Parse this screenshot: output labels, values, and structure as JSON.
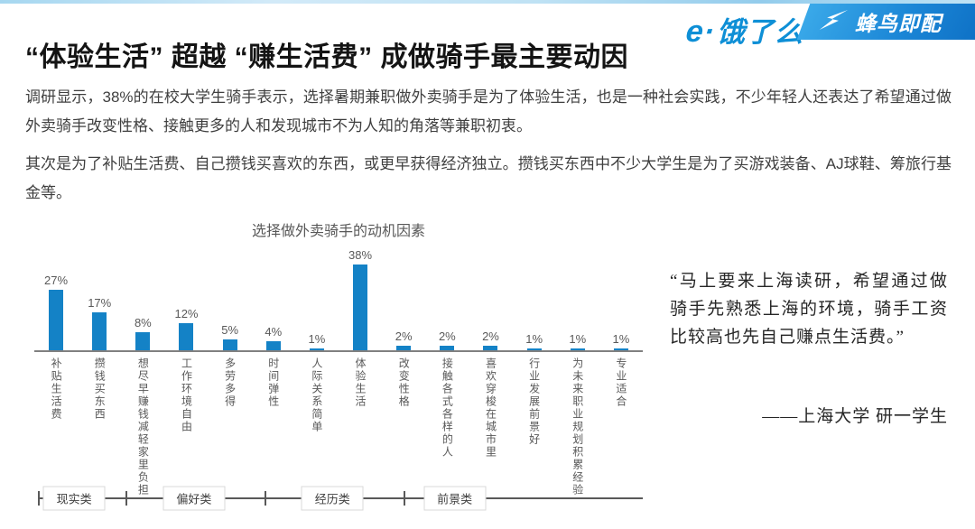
{
  "header": {
    "eleme_logo_mark": "e·",
    "eleme_logo_text": "饿了么",
    "fengniao_logo_text": "蜂鸟即配"
  },
  "title": "“体验生活” 超越 “赚生活费” 成做骑手最主要动因",
  "paragraphs": {
    "p1": "调研显示，38%的在校大学生骑手表示，选择暑期兼职做外卖骑手是为了体验生活，也是一种社会实践，不少年轻人还表达了希望通过做外卖骑手改变性格、接触更多的人和发现城市不为人知的角落等兼职初衷。",
    "p2": "其次是为了补贴生活费、自己攒钱买喜欢的东西，或更早获得经济独立。攒钱买东西中不少大学生是为了买游戏装备、AJ球鞋、筹旅行基金等。"
  },
  "chart_data": {
    "type": "bar",
    "title": "选择做外卖骑手的动机因素",
    "categories": [
      "补贴生活费",
      "攒钱买东西",
      "想尽早赚钱减轻家里负担",
      "工作环境自由",
      "多劳多得",
      "时间弹性",
      "人际关系简单",
      "体验生活",
      "改变性格",
      "接触各式各样的人",
      "喜欢穿梭在城市里",
      "行业发展前景好",
      "为未来职业规划积累经验",
      "专业适合"
    ],
    "values": [
      27,
      17,
      8,
      12,
      5,
      4,
      1,
      38,
      2,
      2,
      2,
      1,
      1,
      1
    ],
    "unit": "%",
    "ylim": [
      0,
      40
    ],
    "bar_color": "#1482c6",
    "axis_color": "#808080",
    "grid": false,
    "legend": false,
    "groups": [
      {
        "label": "现实类",
        "bars": [
          0,
          1,
          2
        ]
      },
      {
        "label": "偏好类",
        "bars": [
          3,
          4,
          5,
          6
        ]
      },
      {
        "label": "经历类",
        "bars": [
          7,
          8,
          9,
          10
        ]
      },
      {
        "label": "前景类",
        "bars": [
          11,
          12,
          13
        ]
      }
    ]
  },
  "quote": {
    "text": "“马上要来上海读研，希望通过做骑手先熟悉上海的环境，骑手工资比较高也先自己赚点生活费。”",
    "attribution": "——上海大学 研一学生"
  },
  "colors": {
    "brand_blue": "#0e8fd6",
    "bar_blue": "#1482c6",
    "banner_gradient_start": "#3aa9e9",
    "banner_gradient_end": "#0d6fc4"
  }
}
